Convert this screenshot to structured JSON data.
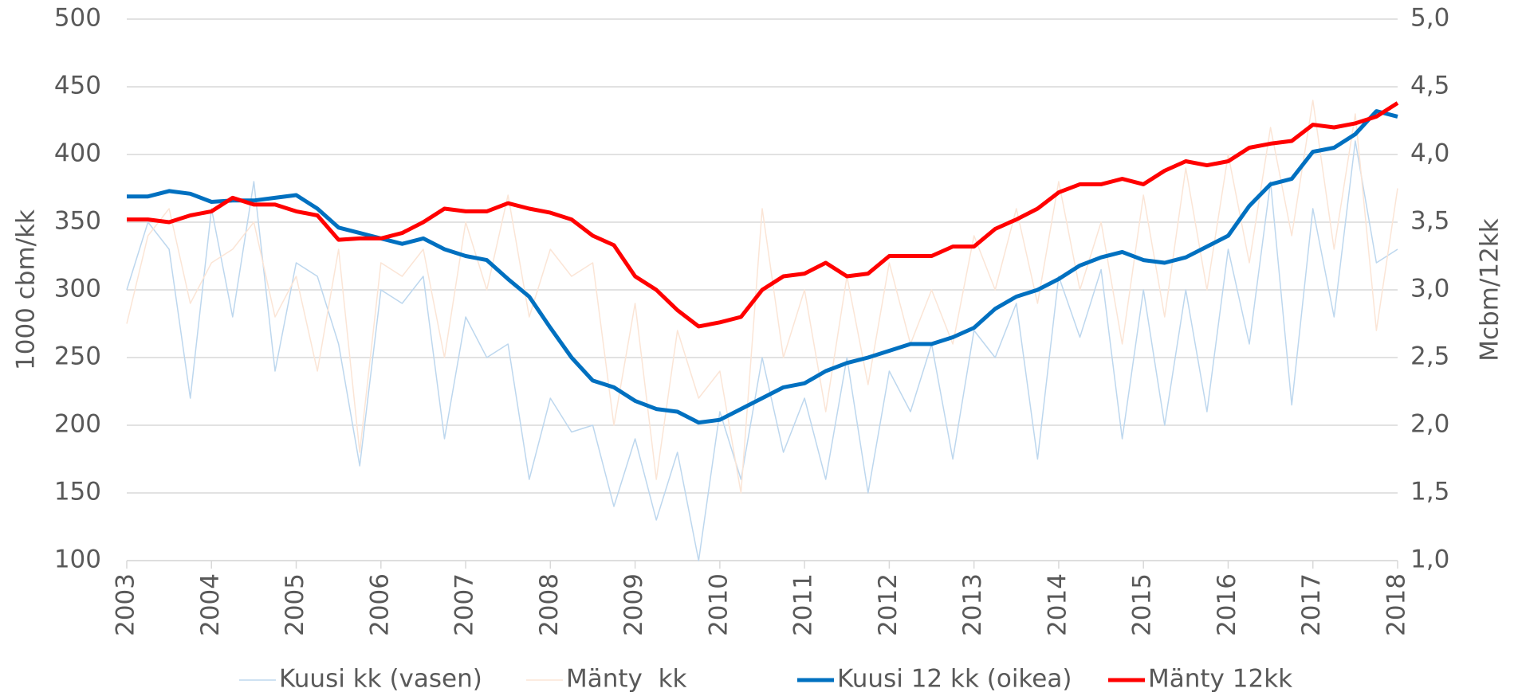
{
  "chart_data": {
    "type": "line",
    "ylabel": "1000 cbm/kk",
    "y2label": "Mcbm/12kk",
    "x": [
      2003,
      2003.25,
      2003.5,
      2003.75,
      2004,
      2004.25,
      2004.5,
      2004.75,
      2005,
      2005.25,
      2005.5,
      2005.75,
      2006,
      2006.25,
      2006.5,
      2006.75,
      2007,
      2007.25,
      2007.5,
      2007.75,
      2008,
      2008.25,
      2008.5,
      2008.75,
      2009,
      2009.25,
      2009.5,
      2009.75,
      2010,
      2010.25,
      2010.5,
      2010.75,
      2011,
      2011.25,
      2011.5,
      2011.75,
      2012,
      2012.25,
      2012.5,
      2012.75,
      2013,
      2013.25,
      2013.5,
      2013.75,
      2014,
      2014.25,
      2014.5,
      2014.75,
      2015,
      2015.25,
      2015.5,
      2015.75,
      2016,
      2016.25,
      2016.5,
      2016.75,
      2017,
      2017.25,
      2017.5,
      2017.75,
      2018
    ],
    "xlim": [
      2003,
      2018
    ],
    "xticks": [
      2003,
      2004,
      2005,
      2006,
      2007,
      2008,
      2009,
      2010,
      2011,
      2012,
      2013,
      2014,
      2015,
      2016,
      2017,
      2018
    ],
    "ylim": [
      100,
      500
    ],
    "yticks": [
      100,
      150,
      200,
      250,
      300,
      350,
      400,
      450,
      500
    ],
    "y2lim": [
      1,
      5
    ],
    "y2ticks": [
      {
        "value": 1,
        "label": "1,0"
      },
      {
        "value": 1.5,
        "label": "1,5"
      },
      {
        "value": 2,
        "label": "2,0"
      },
      {
        "value": 2.5,
        "label": "2,5"
      },
      {
        "value": 3,
        "label": "3,0"
      },
      {
        "value": 3.5,
        "label": "3,5"
      },
      {
        "value": 4,
        "label": "4,0"
      },
      {
        "value": 4.5,
        "label": "4,5"
      },
      {
        "value": 5,
        "label": "5,0"
      }
    ],
    "grid": true,
    "legend": "bottom",
    "series": [
      {
        "name": "Kuusi kk (vasen)",
        "color": "#bdd7ee",
        "width": 1.5,
        "values": [
          300,
          350,
          330,
          220,
          360,
          280,
          380,
          240,
          320,
          310,
          260,
          170,
          300,
          290,
          310,
          190,
          280,
          250,
          260,
          160,
          220,
          195,
          200,
          140,
          190,
          130,
          180,
          100,
          210,
          160,
          250,
          180,
          220,
          160,
          250,
          150,
          240,
          210,
          260,
          175,
          270,
          250,
          290,
          175,
          310,
          265,
          315,
          190,
          300,
          200,
          300,
          210,
          330,
          260,
          380,
          215,
          360,
          280,
          410,
          320,
          330
        ]
      },
      {
        "name": "Mänty  kk",
        "color": "#fbe5d6",
        "width": 1.5,
        "values": [
          275,
          340,
          360,
          290,
          320,
          330,
          350,
          280,
          310,
          240,
          330,
          180,
          320,
          310,
          330,
          250,
          350,
          300,
          370,
          280,
          330,
          310,
          320,
          200,
          290,
          160,
          270,
          220,
          240,
          150,
          360,
          250,
          300,
          210,
          310,
          230,
          320,
          260,
          300,
          260,
          340,
          300,
          360,
          290,
          380,
          300,
          350,
          260,
          370,
          280,
          390,
          300,
          400,
          320,
          420,
          340,
          440,
          330,
          430,
          270,
          375
        ]
      },
      {
        "name": "Kuusi 12 kk (oikea)",
        "color": "#0070c0",
        "width": 5,
        "axis": "y2",
        "values": [
          3.69,
          3.69,
          3.73,
          3.71,
          3.65,
          3.66,
          3.66,
          3.68,
          3.7,
          3.6,
          3.46,
          3.42,
          3.38,
          3.34,
          3.38,
          3.3,
          3.25,
          3.22,
          3.08,
          2.95,
          2.72,
          2.5,
          2.33,
          2.28,
          2.18,
          2.12,
          2.1,
          2.02,
          2.04,
          2.12,
          2.2,
          2.28,
          2.31,
          2.4,
          2.46,
          2.5,
          2.55,
          2.6,
          2.6,
          2.65,
          2.72,
          2.86,
          2.95,
          3.0,
          3.08,
          3.18,
          3.24,
          3.28,
          3.22,
          3.2,
          3.24,
          3.32,
          3.4,
          3.62,
          3.78,
          3.82,
          4.02,
          4.05,
          4.15,
          4.32,
          4.28
        ]
      },
      {
        "name": "Mänty 12kk",
        "color": "#ff0000",
        "width": 5,
        "axis": "y2",
        "values": [
          3.52,
          3.52,
          3.5,
          3.55,
          3.58,
          3.68,
          3.63,
          3.63,
          3.58,
          3.55,
          3.37,
          3.38,
          3.38,
          3.42,
          3.5,
          3.6,
          3.58,
          3.58,
          3.64,
          3.6,
          3.57,
          3.52,
          3.4,
          3.33,
          3.1,
          3.0,
          2.85,
          2.73,
          2.76,
          2.8,
          3.0,
          3.1,
          3.12,
          3.2,
          3.1,
          3.12,
          3.25,
          3.25,
          3.25,
          3.32,
          3.32,
          3.45,
          3.52,
          3.6,
          3.72,
          3.78,
          3.78,
          3.82,
          3.78,
          3.88,
          3.95,
          3.92,
          3.95,
          4.05,
          4.08,
          4.1,
          4.22,
          4.2,
          4.23,
          4.28,
          4.38
        ]
      }
    ]
  }
}
